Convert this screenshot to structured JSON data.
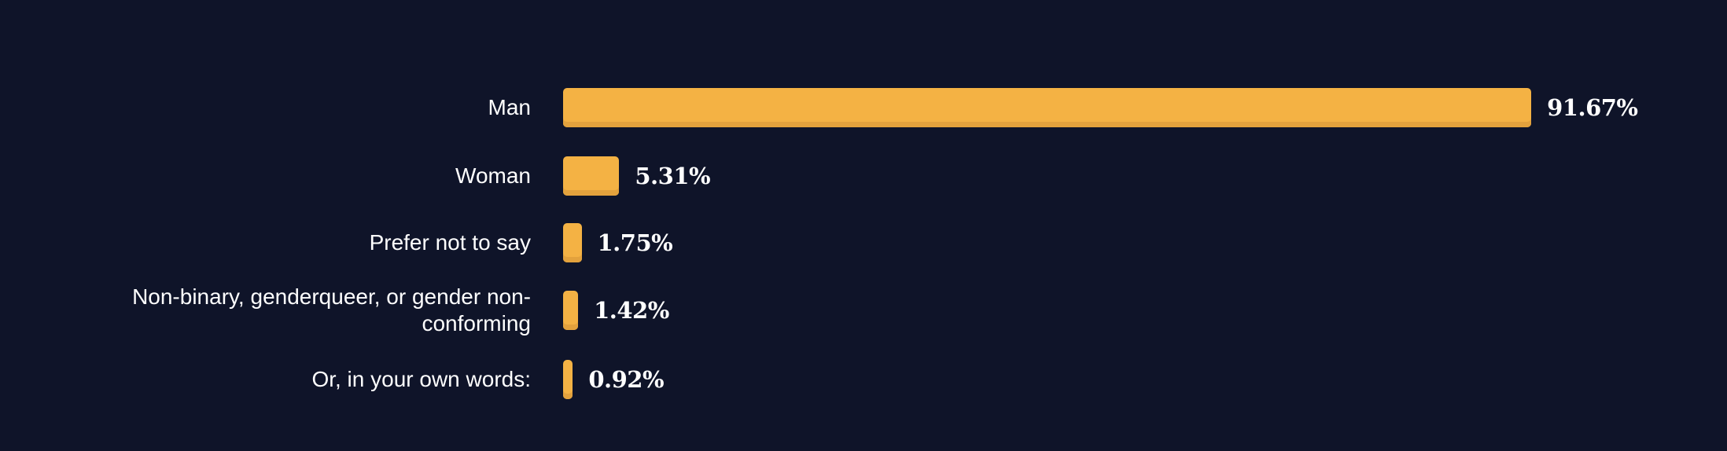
{
  "chart_data": {
    "type": "bar",
    "orientation": "horizontal",
    "categories": [
      "Man",
      "Woman",
      "Prefer not to say",
      "Non-binary, genderqueer, or gender non-conforming",
      "Or, in your own words:"
    ],
    "values": [
      91.67,
      5.31,
      1.75,
      1.42,
      0.92
    ],
    "value_labels": [
      "91.67%",
      "5.31%",
      "1.75%",
      "1.42%",
      "0.92%"
    ],
    "color": "#f4b244"
  }
}
